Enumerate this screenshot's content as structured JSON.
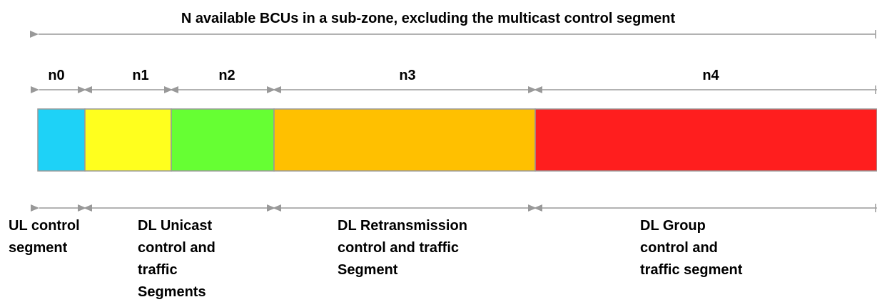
{
  "title": "N available BCUs in a sub-zone, excluding the multicast control segment",
  "segments": [
    {
      "label": "n0",
      "color": "#1ed2f7"
    },
    {
      "label": "n1",
      "color": "#ffff1e"
    },
    {
      "label": "n2",
      "color": "#66ff33"
    },
    {
      "label": "n3",
      "color": "#ffc000"
    },
    {
      "label": "n4",
      "color": "#ff1e1e"
    }
  ],
  "groups": [
    {
      "lines": [
        "UL control",
        "segment"
      ]
    },
    {
      "lines": [
        "DL Unicast",
        "control and",
        "traffic",
        "Segments"
      ]
    },
    {
      "lines": [
        "DL Retransmission",
        "control and traffic",
        "Segment"
      ]
    },
    {
      "lines": [
        "DL Group",
        "control and",
        "traffic segment"
      ]
    }
  ]
}
